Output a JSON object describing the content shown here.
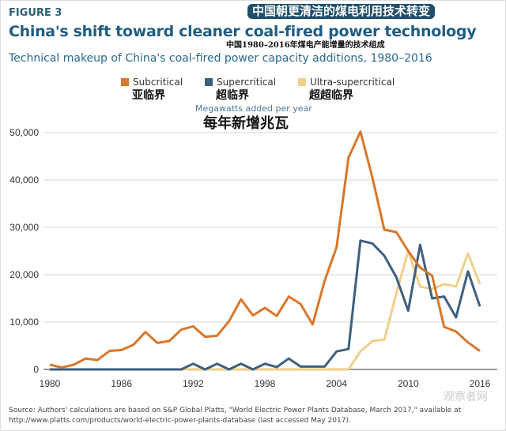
{
  "figure_label": "FIGURE 3",
  "cn_title": "中国朝更清洁的煤电利用技术转变",
  "cn_subtitle": "中国1980–2016年煤电产能增量的技术组成",
  "watermark": "观察者网",
  "source": "Source: Authors' calculations are based on S&P Global Platts, \"World Electric Power Plants Database, March 2017,\" available at http://www.platts.com/products/world-electric-power-plants-database (last accessed May 2017).",
  "chart_data": {
    "type": "line",
    "title": "China's shift toward cleaner coal-fired power technology",
    "subtitle": "Technical makeup of China's coal-fired power capacity additions, 1980–2016",
    "ylabel": "Megawatts added per year",
    "ylabel_cn": "每年新增兆瓦",
    "ylim": [
      0,
      50000
    ],
    "xlim": [
      1980,
      2016
    ],
    "y_ticks": [
      "0",
      "10,000",
      "20,000",
      "30,000",
      "40,000",
      "50,000"
    ],
    "y_tick_values": [
      0,
      10000,
      20000,
      30000,
      40000,
      50000
    ],
    "x_ticks": [
      "1980",
      "1986",
      "1992",
      "1998",
      "2004",
      "2010",
      "2016"
    ],
    "x_tick_values": [
      1980,
      1986,
      1992,
      1998,
      2004,
      2010,
      2016
    ],
    "grid": "horizontal",
    "legend_placement": "top",
    "x": [
      1980,
      1981,
      1982,
      1983,
      1984,
      1985,
      1986,
      1987,
      1988,
      1989,
      1990,
      1991,
      1992,
      1993,
      1994,
      1995,
      1996,
      1997,
      1998,
      1999,
      2000,
      2001,
      2002,
      2003,
      2004,
      2005,
      2006,
      2007,
      2008,
      2009,
      2010,
      2011,
      2012,
      2013,
      2014,
      2015,
      2016
    ],
    "series": [
      {
        "name": "Subcritical",
        "name_cn": "亚临界",
        "color": "#d9772a",
        "values": [
          1000,
          400,
          1000,
          2300,
          2000,
          3900,
          4100,
          5200,
          7900,
          5600,
          6000,
          8400,
          9100,
          6900,
          7100,
          10200,
          14800,
          11400,
          13000,
          11300,
          15400,
          13800,
          9500,
          18700,
          25800,
          44700,
          50200,
          40500,
          29500,
          29000,
          25000,
          21500,
          19800,
          9000,
          8000,
          5700,
          3900
        ]
      },
      {
        "name": "Supercritical",
        "name_cn": "超临界",
        "color": "#3e5f80",
        "values": [
          0,
          0,
          0,
          0,
          0,
          0,
          0,
          0,
          0,
          0,
          0,
          0,
          1200,
          0,
          1200,
          0,
          1200,
          0,
          1200,
          500,
          2300,
          600,
          600,
          600,
          3800,
          4300,
          27200,
          26600,
          24000,
          19500,
          12400,
          26300,
          15000,
          15400,
          11000,
          20700,
          13300
        ]
      },
      {
        "name": "Ultra-supercritical",
        "name_cn": "超超临界",
        "color": "#efcf8a",
        "values": [
          0,
          0,
          0,
          0,
          0,
          0,
          0,
          0,
          0,
          0,
          0,
          0,
          0,
          0,
          0,
          0,
          0,
          0,
          0,
          0,
          0,
          0,
          0,
          0,
          0,
          0,
          3800,
          6000,
          6300,
          16000,
          25000,
          17500,
          17000,
          18000,
          17500,
          24500,
          18000
        ]
      }
    ]
  }
}
